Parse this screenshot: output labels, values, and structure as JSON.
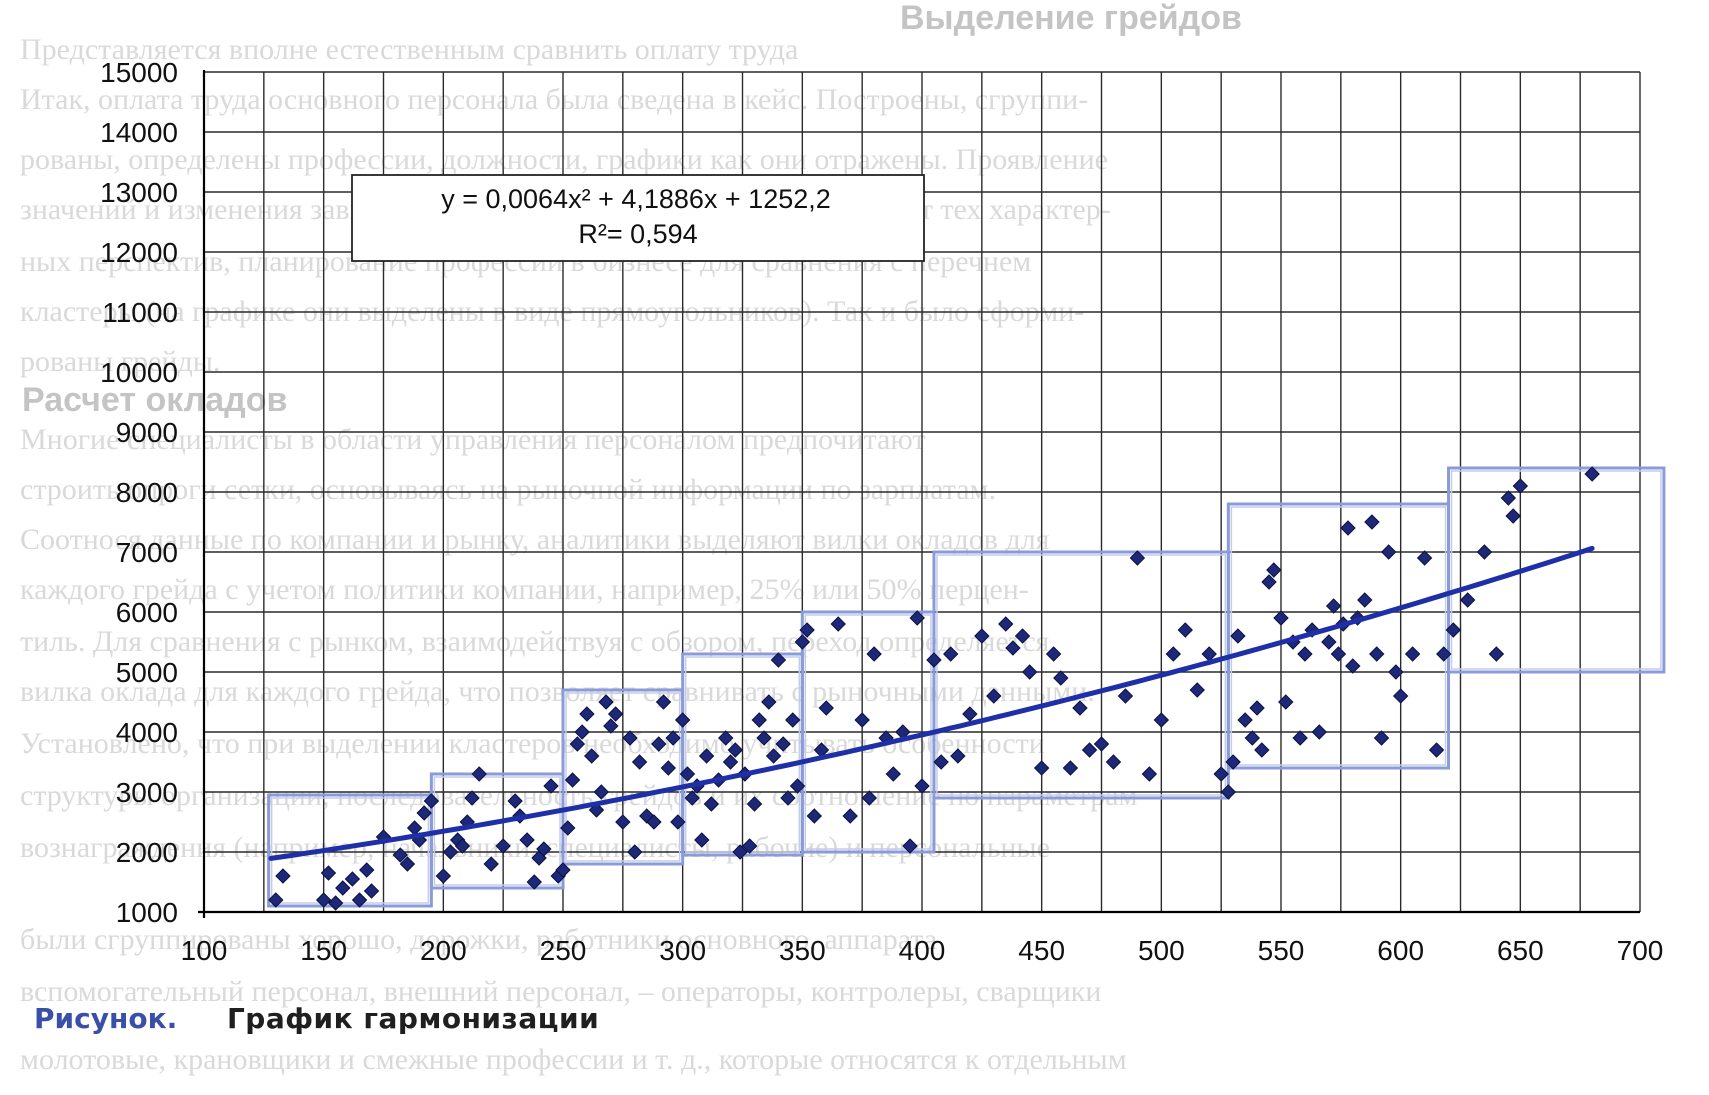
{
  "background_text": {
    "heading_1": "Выделение грейдов",
    "heading_2": "Расчет окладов",
    "lines": [
      "Представляется вполне естественным сравнить оплату труда",
      "Итак, оплата труда основного персонала была сведена в кейс. Построены, сгруппи-",
      "рованы, определены профессии, должности, графики как они отражены. Проявление",
      "значений и изменения зависимостей оплаты труда. Значения зависят от тех характер-",
      "ных перспектив, планирование профессий в бизнесе для сравнения с перечнем",
      "кластеры (на графике они выделены в виде прямоугольников). Так и было сформи-",
      "рованы грейды.",
      "Многие специалисты в области управления персоналом предпочитают",
      "строить опроги сетки, основываясь на рыночной информации по зарплатам.",
      "Соотнося данные по компании и рынку, аналитики выделяют вилки окладов для",
      "каждого грейда с учетом политики компании, например, 25% или 50% перцен-",
      "тиль. Для сравнения с рынком, взаимодействуя с обзором, переход определяется",
      "вилка оклада для каждого грейда, что позволяет сравнивать с рыночными данными.",
      "Установлено, что при выделении кластеров необходимо учитывать особенности",
      "структуры организации, последовательность грейдов и их соотношение по параметрам",
      "вознаграждения (например, начальники, специалисты, рабочие) и персональные",
      "были сгруппированы хорошо, дорожки, работники основного, аппарата",
      "вспомогательный персонал, внешний персонал, – операторы, контролеры, сварщики",
      "молотовые, крановщики и смежные профессии и т. д., которые относятся к отдельным"
    ]
  },
  "chart_data": {
    "type": "scatter",
    "title": "",
    "xlabel": "",
    "ylabel": "",
    "xlim": [
      100,
      700
    ],
    "ylim": [
      1000,
      15000
    ],
    "xticks": [
      100,
      150,
      200,
      250,
      300,
      350,
      400,
      450,
      500,
      550,
      600,
      650,
      700
    ],
    "yticks": [
      1000,
      2000,
      3000,
      4000,
      5000,
      6000,
      7000,
      8000,
      9000,
      10000,
      11000,
      12000,
      13000,
      14000,
      15000
    ],
    "grid": true,
    "trendline": {
      "type": "polynomial",
      "degree": 2,
      "equation": "y = 0,0064x² + 4,1886x + 1252,2",
      "r_squared": "R²= 0,594",
      "coefficients": [
        0.0064,
        4.1886,
        1252.2
      ],
      "x_range": [
        128,
        680
      ],
      "color": "#1e2fa8"
    },
    "marker_color": "#1e2878",
    "cluster_color": "#8a9bd8",
    "clusters": [
      {
        "x": [
          127,
          195
        ],
        "y": [
          1100,
          2950
        ]
      },
      {
        "x": [
          195,
          250
        ],
        "y": [
          1400,
          3300
        ]
      },
      {
        "x": [
          250,
          300
        ],
        "y": [
          1800,
          4700
        ]
      },
      {
        "x": [
          300,
          350
        ],
        "y": [
          1950,
          5300
        ]
      },
      {
        "x": [
          350,
          405
        ],
        "y": [
          2000,
          6000
        ]
      },
      {
        "x": [
          405,
          528
        ],
        "y": [
          2900,
          7000
        ]
      },
      {
        "x": [
          528,
          620
        ],
        "y": [
          3400,
          7800
        ]
      },
      {
        "x": [
          620,
          710
        ],
        "y": [
          5000,
          8400
        ]
      }
    ],
    "points": [
      [
        130,
        1200
      ],
      [
        133,
        1600
      ],
      [
        150,
        1200
      ],
      [
        152,
        1650
      ],
      [
        155,
        1150
      ],
      [
        158,
        1400
      ],
      [
        162,
        1550
      ],
      [
        165,
        1200
      ],
      [
        168,
        1700
      ],
      [
        170,
        1350
      ],
      [
        175,
        2250
      ],
      [
        182,
        1950
      ],
      [
        185,
        1800
      ],
      [
        188,
        2400
      ],
      [
        192,
        2650
      ],
      [
        195,
        2850
      ],
      [
        190,
        2200
      ],
      [
        200,
        1600
      ],
      [
        203,
        2000
      ],
      [
        206,
        2200
      ],
      [
        208,
        2100
      ],
      [
        210,
        2500
      ],
      [
        212,
        2900
      ],
      [
        215,
        3300
      ],
      [
        220,
        1800
      ],
      [
        225,
        2100
      ],
      [
        230,
        2850
      ],
      [
        232,
        2600
      ],
      [
        235,
        2200
      ],
      [
        238,
        1500
      ],
      [
        240,
        1900
      ],
      [
        242,
        2050
      ],
      [
        245,
        3100
      ],
      [
        248,
        1600
      ],
      [
        250,
        1700
      ],
      [
        252,
        2400
      ],
      [
        254,
        3200
      ],
      [
        256,
        3800
      ],
      [
        258,
        4000
      ],
      [
        260,
        4300
      ],
      [
        262,
        3600
      ],
      [
        264,
        2700
      ],
      [
        266,
        3000
      ],
      [
        268,
        4500
      ],
      [
        270,
        4100
      ],
      [
        272,
        4300
      ],
      [
        275,
        2500
      ],
      [
        278,
        3900
      ],
      [
        280,
        2000
      ],
      [
        282,
        3500
      ],
      [
        285,
        2600
      ],
      [
        288,
        2500
      ],
      [
        290,
        3800
      ],
      [
        292,
        4500
      ],
      [
        294,
        3400
      ],
      [
        296,
        3900
      ],
      [
        298,
        2500
      ],
      [
        300,
        4200
      ],
      [
        302,
        3300
      ],
      [
        304,
        2900
      ],
      [
        306,
        3100
      ],
      [
        308,
        2200
      ],
      [
        310,
        3600
      ],
      [
        312,
        2800
      ],
      [
        315,
        3200
      ],
      [
        318,
        3900
      ],
      [
        320,
        3500
      ],
      [
        322,
        3700
      ],
      [
        324,
        2000
      ],
      [
        326,
        3300
      ],
      [
        328,
        2100
      ],
      [
        330,
        2800
      ],
      [
        332,
        4200
      ],
      [
        334,
        3900
      ],
      [
        336,
        4500
      ],
      [
        338,
        3600
      ],
      [
        340,
        5200
      ],
      [
        342,
        3800
      ],
      [
        344,
        2900
      ],
      [
        346,
        4200
      ],
      [
        348,
        3100
      ],
      [
        350,
        5500
      ],
      [
        352,
        5700
      ],
      [
        355,
        2600
      ],
      [
        358,
        3700
      ],
      [
        360,
        4400
      ],
      [
        365,
        5800
      ],
      [
        370,
        2600
      ],
      [
        375,
        4200
      ],
      [
        378,
        2900
      ],
      [
        380,
        5300
      ],
      [
        385,
        3900
      ],
      [
        388,
        3300
      ],
      [
        392,
        4000
      ],
      [
        395,
        2100
      ],
      [
        398,
        5900
      ],
      [
        400,
        3100
      ],
      [
        405,
        5200
      ],
      [
        408,
        3500
      ],
      [
        412,
        5300
      ],
      [
        415,
        3600
      ],
      [
        420,
        4300
      ],
      [
        425,
        5600
      ],
      [
        430,
        4600
      ],
      [
        435,
        5800
      ],
      [
        438,
        5400
      ],
      [
        442,
        5600
      ],
      [
        445,
        5000
      ],
      [
        450,
        3400
      ],
      [
        455,
        5300
      ],
      [
        458,
        4900
      ],
      [
        462,
        3400
      ],
      [
        466,
        4400
      ],
      [
        470,
        3700
      ],
      [
        475,
        3800
      ],
      [
        480,
        3500
      ],
      [
        485,
        4600
      ],
      [
        490,
        6900
      ],
      [
        495,
        3300
      ],
      [
        500,
        4200
      ],
      [
        505,
        5300
      ],
      [
        510,
        5700
      ],
      [
        515,
        4700
      ],
      [
        520,
        5300
      ],
      [
        525,
        3300
      ],
      [
        528,
        3000
      ],
      [
        530,
        3500
      ],
      [
        532,
        5600
      ],
      [
        535,
        4200
      ],
      [
        538,
        3900
      ],
      [
        540,
        4400
      ],
      [
        542,
        3700
      ],
      [
        545,
        6500
      ],
      [
        547,
        6700
      ],
      [
        550,
        5900
      ],
      [
        552,
        4500
      ],
      [
        555,
        5500
      ],
      [
        558,
        3900
      ],
      [
        560,
        5300
      ],
      [
        563,
        5700
      ],
      [
        566,
        4000
      ],
      [
        570,
        5500
      ],
      [
        572,
        6100
      ],
      [
        574,
        5300
      ],
      [
        576,
        5800
      ],
      [
        578,
        7400
      ],
      [
        580,
        5100
      ],
      [
        582,
        5900
      ],
      [
        585,
        6200
      ],
      [
        588,
        7500
      ],
      [
        590,
        5300
      ],
      [
        592,
        3900
      ],
      [
        595,
        7000
      ],
      [
        598,
        5000
      ],
      [
        600,
        4600
      ],
      [
        605,
        5300
      ],
      [
        610,
        6900
      ],
      [
        615,
        3700
      ],
      [
        618,
        5300
      ],
      [
        622,
        5700
      ],
      [
        628,
        6200
      ],
      [
        635,
        7000
      ],
      [
        640,
        5300
      ],
      [
        645,
        7900
      ],
      [
        647,
        7600
      ],
      [
        650,
        8100
      ],
      [
        680,
        8300
      ]
    ]
  },
  "caption": {
    "label": "Рисунок.",
    "title": "График гармонизации"
  }
}
